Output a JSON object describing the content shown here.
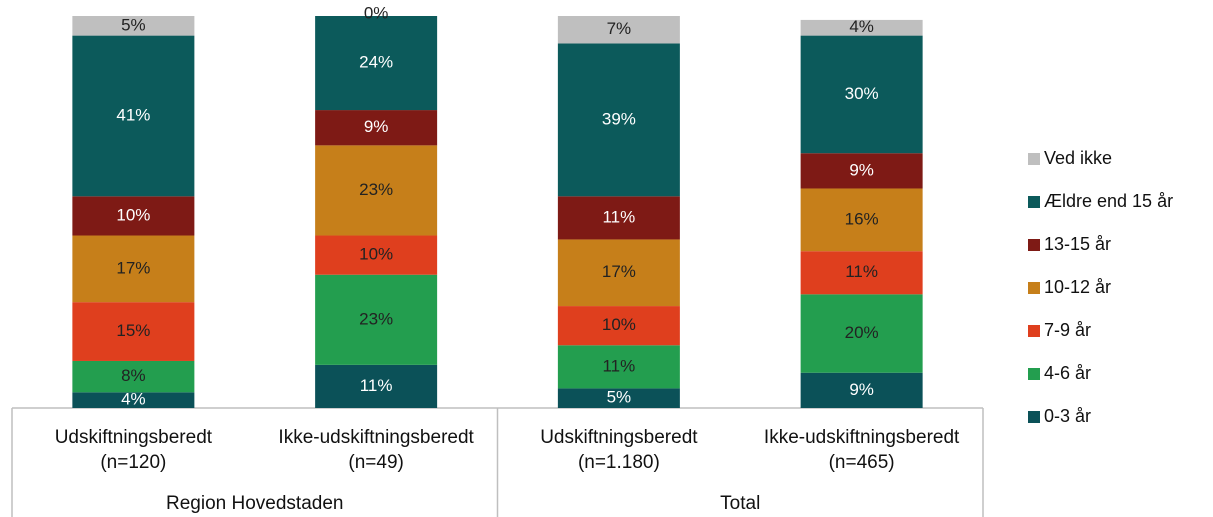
{
  "chart_data": {
    "type": "stacked_bar",
    "categories": [
      "Udskiftningsberedt\n(n=120)",
      "Ikke-udskiftningsberedt\n(n=49)",
      "Udskiftningsberedt\n(n=1.180)",
      "Ikke-udskiftningsberedt\n(n=465)"
    ],
    "groups": [
      "Region Hovedstaden",
      "Total"
    ],
    "ylim": [
      0,
      100
    ],
    "series": [
      {
        "name": "0-3 år",
        "color": "#0b5158",
        "values": [
          4,
          11,
          5,
          9
        ],
        "value_labels": [
          "4%",
          "11%",
          "5%",
          "9%"
        ]
      },
      {
        "name": "4-6 år",
        "color": "#239e4f",
        "values": [
          8,
          23,
          11,
          20
        ],
        "value_labels": [
          "8%",
          "23%",
          "11%",
          "20%"
        ]
      },
      {
        "name": "7-9 år",
        "color": "#df3f1e",
        "values": [
          15,
          10,
          10,
          11
        ],
        "value_labels": [
          "15%",
          "10%",
          "10%",
          "11%"
        ]
      },
      {
        "name": "10-12 år",
        "color": "#c67f1a",
        "values": [
          17,
          23,
          17,
          16
        ],
        "value_labels": [
          "17%",
          "23%",
          "17%",
          "16%"
        ]
      },
      {
        "name": "13-15 år",
        "color": "#7e1a15",
        "values": [
          10,
          9,
          11,
          9
        ],
        "value_labels": [
          "10%",
          "9%",
          "11%",
          "9%"
        ]
      },
      {
        "name": "Ældre end 15 år",
        "color": "#0c5a5b",
        "values": [
          41,
          24,
          39,
          30
        ],
        "value_labels": [
          "41%",
          "24%",
          "39%",
          "30%"
        ]
      },
      {
        "name": "Ved ikke",
        "color": "#bfbfbf",
        "values": [
          5,
          0,
          7,
          4
        ],
        "value_labels": [
          "5%",
          "0%",
          "7%",
          "4%"
        ]
      }
    ],
    "legend": "right"
  }
}
